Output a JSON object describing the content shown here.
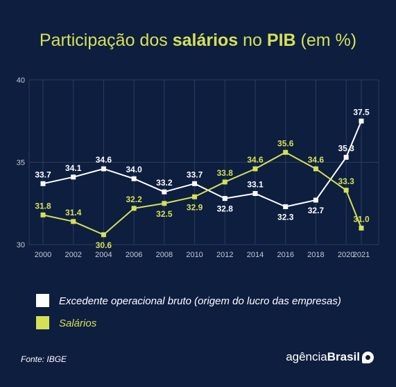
{
  "title": {
    "prefix": "Participação dos ",
    "bold1": "salários",
    "middle": " no ",
    "bold2": "PIB",
    "suffix": " (em %)"
  },
  "colors": {
    "background": "#0e1e3f",
    "grid": "#2b3c5e",
    "axis_text": "#c5cbd6",
    "series_excedente": "#ffffff",
    "series_salarios": "#d4e157"
  },
  "chart_data": {
    "type": "line",
    "title": "Participação dos salários no PIB (em %)",
    "x": [
      "2000",
      "2002",
      "2004",
      "2006",
      "2008",
      "2010",
      "2012",
      "2014",
      "2016",
      "2018",
      "2020",
      "2021"
    ],
    "series": [
      {
        "name": "Excedente operacional bruto (origem do lucro das empresas)",
        "color": "#ffffff",
        "values": [
          33.7,
          34.1,
          34.6,
          34.0,
          33.2,
          33.7,
          32.8,
          33.1,
          32.3,
          32.7,
          35.3,
          37.5
        ]
      },
      {
        "name": "Salários",
        "color": "#d4e157",
        "values": [
          31.8,
          31.4,
          30.6,
          32.2,
          32.5,
          32.9,
          33.8,
          34.6,
          35.6,
          34.6,
          33.3,
          31.0
        ]
      }
    ],
    "yticks": [
      "30",
      "35",
      "40"
    ],
    "ylim": [
      30,
      40
    ],
    "grid": true,
    "legend": "bottom-left"
  },
  "legend": {
    "items": [
      {
        "label": "Excedente operacional bruto (origem do lucro das empresas)"
      },
      {
        "label": "Salários"
      }
    ]
  },
  "footer": {
    "source": "Fonte: IBGE",
    "brand_light": "agência",
    "brand_bold": "Brasil"
  }
}
